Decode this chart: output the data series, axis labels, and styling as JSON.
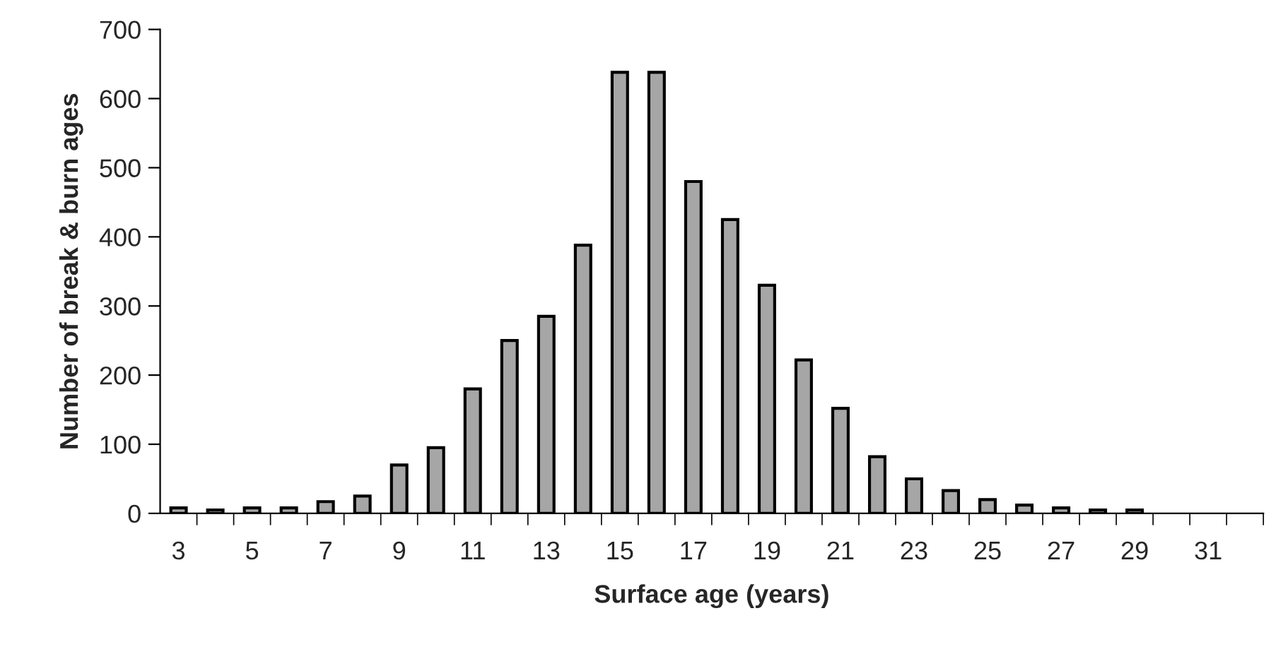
{
  "chart_data": {
    "type": "bar",
    "xlabel": "Surface age (years)",
    "ylabel": "Number of break & burn ages",
    "categories": [
      "3",
      null,
      "5",
      null,
      "7",
      null,
      "9",
      null,
      "11",
      null,
      "13",
      null,
      "15",
      null,
      "17",
      null,
      "19",
      null,
      "21",
      null,
      "23",
      null,
      "25",
      null,
      "27",
      null,
      "29",
      null,
      "31",
      null
    ],
    "values": [
      8,
      5,
      8,
      8,
      17,
      25,
      70,
      95,
      180,
      250,
      285,
      388,
      638,
      638,
      480,
      425,
      330,
      222,
      152,
      82,
      50,
      33,
      20,
      12,
      8,
      5,
      5,
      null,
      null,
      null
    ],
    "color": "#a6a6a6",
    "ylim": [
      0,
      700
    ],
    "yticks": [
      0,
      100,
      200,
      300,
      400,
      500,
      600,
      700
    ],
    "grid": false,
    "legend": false
  }
}
